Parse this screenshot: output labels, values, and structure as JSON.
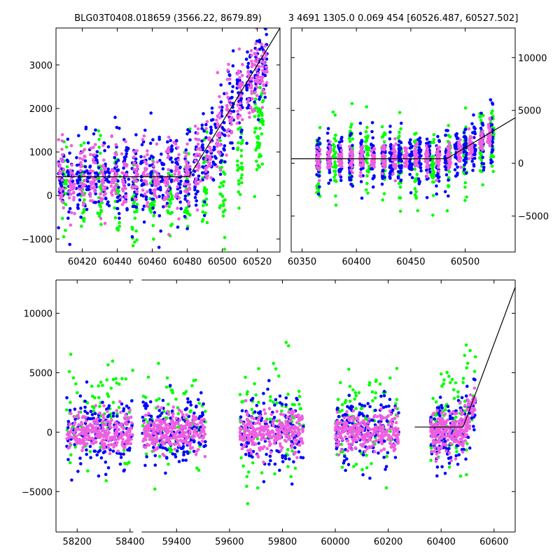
{
  "colors": {
    "blue": "#0000ff",
    "green": "#00ff00",
    "pink": "#ee5fe0",
    "line": "#000000"
  },
  "chart_data": [
    {
      "type": "scatter",
      "title": "BLG03T0408.018659 (3566.22, 8679.89)",
      "xlim": [
        60405,
        60533
      ],
      "ylim": [
        -1300,
        3850
      ],
      "xticks": [
        60420,
        60440,
        60460,
        60480,
        60500,
        60520
      ],
      "yticks": [
        -1000,
        0,
        1000,
        2000,
        3000
      ],
      "ytick_side": "left",
      "model_line": [
        [
          60405,
          430
        ],
        [
          60481,
          430
        ],
        [
          60533,
          3850
        ]
      ],
      "series": [
        {
          "color": "blue",
          "cluster_centers": [
            60408,
            60413,
            60418,
            60423,
            60428,
            60434,
            60440,
            60445,
            60450,
            60455,
            60460,
            60465,
            60470,
            60475,
            60480,
            60485,
            60490,
            60495,
            60500,
            60505,
            60510,
            60515,
            60520,
            60524
          ],
          "base": [
            430,
            430,
            430,
            430,
            430,
            430,
            430,
            430,
            430,
            430,
            430,
            430,
            430,
            430,
            430,
            600,
            900,
            1200,
            1500,
            1900,
            2300,
            2600,
            2900,
            3100
          ],
          "spread": 750
        },
        {
          "color": "green",
          "cluster_centers": [
            60410,
            60420,
            60430,
            60440,
            60450,
            60460,
            60470,
            60480,
            60490,
            60500,
            60510,
            60520,
            60522
          ],
          "base": [
            100,
            100,
            100,
            0,
            -100,
            0,
            100,
            200,
            300,
            200,
            800,
            1600,
            1800
          ],
          "spread": 900
        },
        {
          "color": "pink",
          "cluster_centers": [
            60408,
            60414,
            60420,
            60426,
            60432,
            60438,
            60444,
            60450,
            60456,
            60462,
            60468,
            60474,
            60480,
            60486,
            60492,
            60498,
            60504,
            60510,
            60516,
            60520,
            60524
          ],
          "base": [
            400,
            400,
            400,
            400,
            400,
            400,
            400,
            400,
            400,
            400,
            400,
            400,
            450,
            800,
            1100,
            1500,
            1900,
            2300,
            2700,
            2900,
            3000
          ],
          "spread": 600
        }
      ]
    },
    {
      "type": "scatter",
      "title": "3 4691 1305.0 0.069 454 [60526.487, 60527.502]",
      "xlim": [
        60340,
        60546
      ],
      "ylim": [
        -8400,
        12800
      ],
      "xticks": [
        60350,
        60400,
        60450,
        60500
      ],
      "yticks": [
        -5000,
        0,
        5000,
        10000
      ],
      "ytick_side": "right",
      "model_line": [
        [
          60340,
          430
        ],
        [
          60483,
          430
        ],
        [
          60546,
          4300
        ]
      ],
      "series": [
        {
          "color": "blue",
          "cluster_centers": [
            60365,
            60375,
            60385,
            60395,
            60405,
            60415,
            60425,
            60432,
            60440,
            60450,
            60458,
            60466,
            60475,
            60483,
            60492,
            60500,
            60508,
            60516,
            60524
          ],
          "base": [
            430,
            430,
            430,
            430,
            430,
            430,
            430,
            430,
            430,
            430,
            430,
            430,
            430,
            500,
            800,
            1200,
            1700,
            2200,
            2800
          ],
          "spread": 1800
        },
        {
          "color": "green",
          "cluster_centers": [
            60365,
            60380,
            60395,
            60410,
            60425,
            60440,
            60455,
            60470,
            60485,
            60500,
            60515,
            60525
          ],
          "base": [
            300,
            300,
            300,
            300,
            300,
            200,
            300,
            300,
            500,
            1200,
            1800,
            2500
          ],
          "spread": 3000
        },
        {
          "color": "pink",
          "cluster_centers": [
            60365,
            60375,
            60385,
            60395,
            60405,
            60415,
            60425,
            60435,
            60445,
            60455,
            60465,
            60475,
            60485,
            60495,
            60505,
            60515,
            60522
          ],
          "base": [
            450,
            450,
            450,
            450,
            450,
            450,
            450,
            450,
            450,
            450,
            450,
            450,
            700,
            1100,
            1600,
            2100,
            2600
          ],
          "spread": 900
        }
      ]
    },
    {
      "type": "scatter",
      "title": "",
      "xlim": [
        58120,
        60680
      ],
      "ylim": [
        -8400,
        12800
      ],
      "x_break": [
        58420,
        59260
      ],
      "xticks": [
        58200,
        58400,
        59400,
        59600,
        59800,
        60000,
        60200,
        60400,
        60600
      ],
      "yticks": [
        -5000,
        0,
        5000,
        10000
      ],
      "ytick_side": "left",
      "model_line": [
        [
          60300,
          430
        ],
        [
          60483,
          430
        ],
        [
          60680,
          12200
        ]
      ],
      "seasons": [
        [
          58160,
          58410
        ],
        [
          59270,
          59510
        ],
        [
          59640,
          59880
        ],
        [
          60000,
          60240
        ],
        [
          60360,
          60530
        ]
      ],
      "series": [
        {
          "color": "blue",
          "spread": 2200
        },
        {
          "color": "green",
          "spread": 3800
        },
        {
          "color": "pink",
          "spread": 1100
        }
      ]
    }
  ]
}
